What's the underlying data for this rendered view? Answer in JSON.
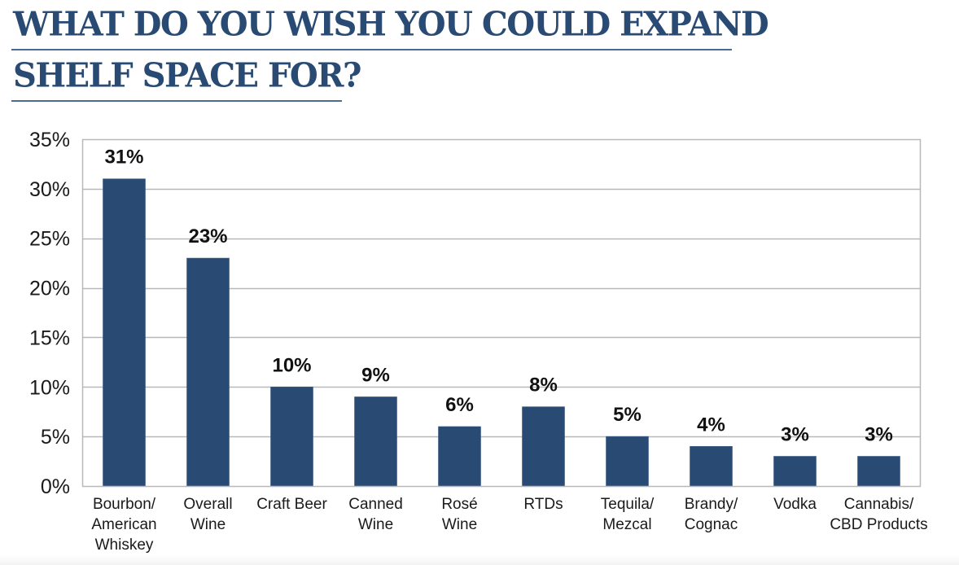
{
  "title": {
    "line1": "WHAT DO YOU WISH YOU COULD EXPAND",
    "line2": "SHELF SPACE FOR?"
  },
  "colors": {
    "title": "#284a73",
    "bar": "#284a73",
    "grid": "#b8b8b8",
    "label": "#111111"
  },
  "chart_data": {
    "type": "bar",
    "title": "What do you wish you could expand shelf space for?",
    "xlabel": "",
    "ylabel": "",
    "ylim": [
      0,
      35
    ],
    "yticks": [
      0,
      5,
      10,
      15,
      20,
      25,
      30,
      35
    ],
    "ytick_labels": [
      "0%",
      "5%",
      "10%",
      "15%",
      "20%",
      "25%",
      "30%",
      "35%"
    ],
    "grid": true,
    "legend": "none",
    "categories": [
      [
        "Bourbon/",
        "American",
        "Whiskey"
      ],
      [
        "Overall",
        "Wine"
      ],
      [
        "Craft Beer"
      ],
      [
        "Canned",
        "Wine"
      ],
      [
        "Rosé",
        "Wine"
      ],
      [
        "RTDs"
      ],
      [
        "Tequila/",
        "Mezcal"
      ],
      [
        "Brandy/",
        "Cognac"
      ],
      [
        "Vodka"
      ],
      [
        "Cannabis/",
        "CBD Products"
      ]
    ],
    "values": [
      31,
      23,
      10,
      9,
      6,
      8,
      5,
      4,
      3,
      3
    ],
    "data_labels": [
      "31%",
      "23%",
      "10%",
      "9%",
      "6%",
      "8%",
      "5%",
      "4%",
      "3%",
      "3%"
    ]
  }
}
